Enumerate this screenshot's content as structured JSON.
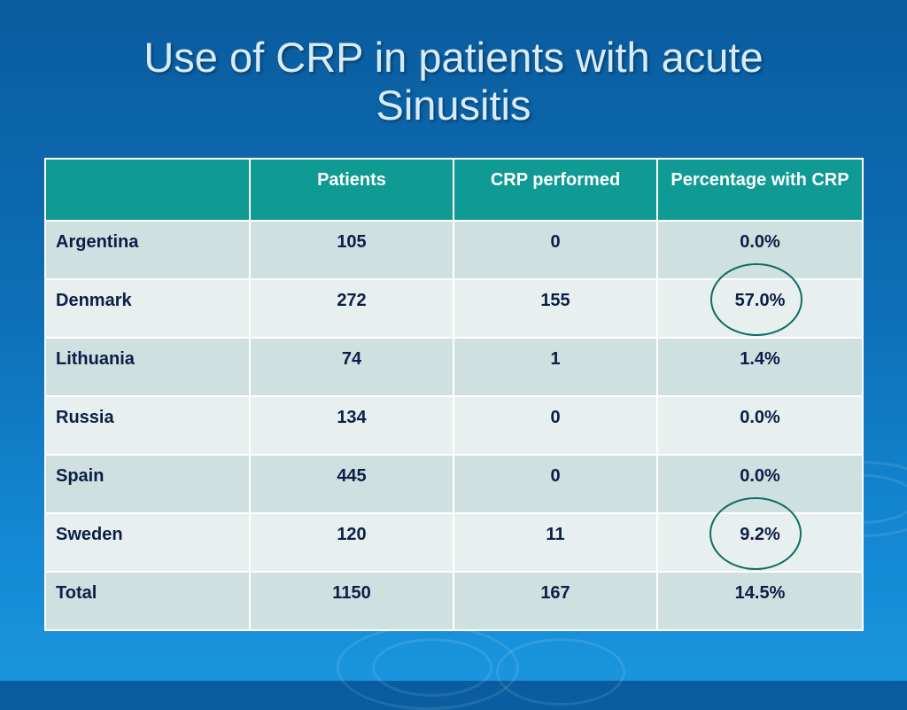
{
  "title_line1": "Use of CRP in patients with acute",
  "title_line2": "Sinusitis",
  "table": {
    "headers": [
      "",
      "Patients",
      "CRP performed",
      "Percentage with CRP"
    ],
    "rows": [
      {
        "country": "Argentina",
        "patients": "105",
        "crp": "0",
        "pct": "0.0%"
      },
      {
        "country": "Denmark",
        "patients": "272",
        "crp": "155",
        "pct": "57.0%"
      },
      {
        "country": "Lithuania",
        "patients": "74",
        "crp": "1",
        "pct": "1.4%"
      },
      {
        "country": "Russia",
        "patients": "134",
        "crp": "0",
        "pct": "0.0%"
      },
      {
        "country": "Spain",
        "patients": "445",
        "crp": "0",
        "pct": "0.0%"
      },
      {
        "country": "Sweden",
        "patients": "120",
        "crp": "11",
        "pct": "9.2%"
      },
      {
        "country": "Total",
        "patients": "1150",
        "crp": "167",
        "pct": "14.5%"
      }
    ]
  },
  "colors": {
    "header_bg": "#0f9b94",
    "row_odd": "#cfe0e0",
    "row_even": "#e8efef",
    "highlight_circle": "#0c6e63"
  }
}
